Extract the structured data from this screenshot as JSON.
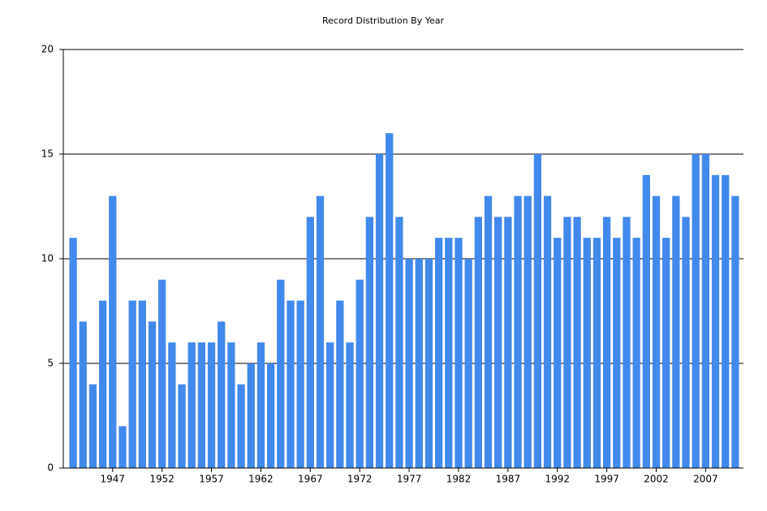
{
  "chart_data": {
    "type": "bar",
    "title": "Record Distribution By Year",
    "categories": [
      null,
      null,
      null,
      null,
      "1947",
      null,
      null,
      null,
      null,
      "1952",
      null,
      null,
      null,
      null,
      "1957",
      null,
      null,
      null,
      null,
      "1962",
      null,
      null,
      null,
      null,
      "1967",
      null,
      null,
      null,
      null,
      "1972",
      null,
      null,
      null,
      null,
      "1977",
      null,
      null,
      null,
      null,
      "1982",
      null,
      null,
      null,
      null,
      "1987",
      null,
      null,
      null,
      null,
      "1992",
      null,
      null,
      null,
      null,
      "1997",
      null,
      null,
      null,
      null,
      "2002",
      null,
      null,
      null,
      null,
      "2007",
      null,
      null,
      null
    ],
    "values": [
      11,
      7,
      4,
      8,
      13,
      2,
      8,
      8,
      7,
      9,
      6,
      4,
      6,
      6,
      6,
      7,
      6,
      4,
      5,
      6,
      5,
      9,
      8,
      8,
      12,
      13,
      6,
      8,
      6,
      9,
      12,
      15,
      16,
      12,
      10,
      10,
      10,
      11,
      11,
      11,
      10,
      12,
      13,
      12,
      12,
      13,
      13,
      15,
      13,
      11,
      12,
      12,
      11,
      11,
      12,
      11,
      12,
      11,
      14,
      13,
      11,
      13,
      12,
      15,
      15,
      14,
      14,
      13
    ],
    "color": "#4189eb",
    "ylim": [
      0,
      20
    ],
    "yticks": [
      0,
      5,
      10,
      15,
      20
    ],
    "grid": true
  }
}
